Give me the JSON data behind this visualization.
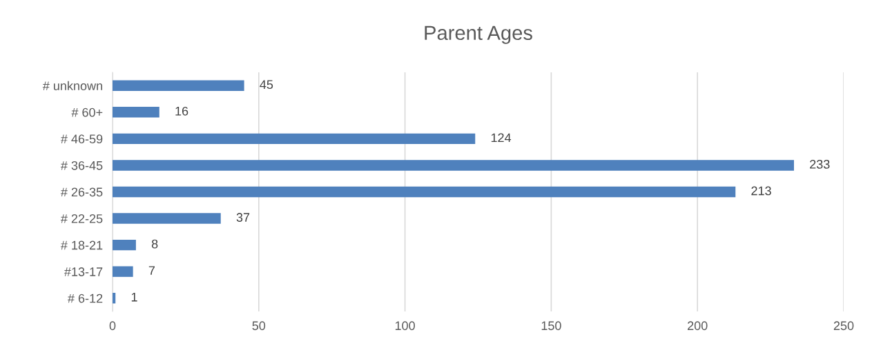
{
  "chart_data": {
    "type": "bar",
    "orientation": "horizontal",
    "title": "Parent Ages",
    "categories": [
      "# unknown",
      "# 60+",
      "# 46-59",
      "# 36-45",
      "# 26-35",
      "# 22-25",
      "# 18-21",
      "#13-17",
      "# 6-12"
    ],
    "values": [
      45,
      16,
      124,
      233,
      213,
      37,
      8,
      7,
      1
    ],
    "color": "#4f81bd",
    "xlim": [
      0,
      250
    ],
    "xticks": [
      0,
      50,
      100,
      150,
      200,
      250
    ],
    "grid": "x",
    "data_labels": true
  }
}
